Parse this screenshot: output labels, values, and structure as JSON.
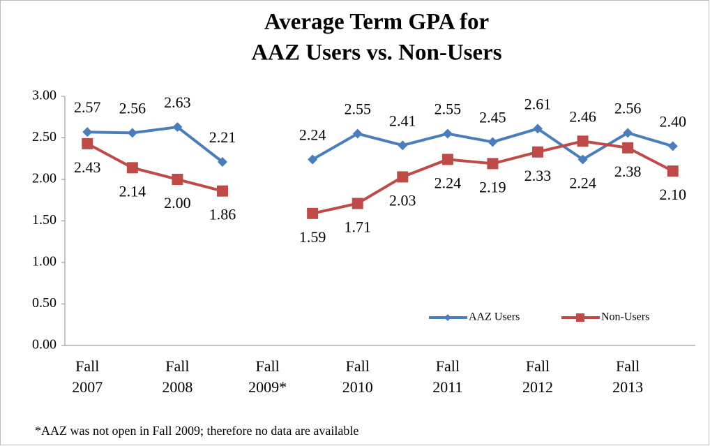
{
  "chart_data": {
    "type": "line",
    "title": [
      "Average Term GPA for",
      "AAZ Users vs. Non-Users"
    ],
    "categories": [
      "Fall 2007",
      null,
      "Fall 2008",
      null,
      "Fall 2009*",
      null,
      "Fall 2010",
      null,
      "Fall 2011",
      null,
      "Fall 2012",
      null,
      "Fall 2013",
      null
    ],
    "series": [
      {
        "name": "AAZ Users",
        "color": "#4a7ebb",
        "marker": "diamond",
        "values": [
          2.57,
          2.56,
          2.63,
          2.21,
          null,
          2.24,
          2.55,
          2.41,
          2.55,
          2.45,
          2.61,
          2.24,
          2.56,
          2.4
        ],
        "value_labels": [
          "2.57",
          "2.56",
          "2.63",
          "2.21",
          null,
          "2.24",
          "2.55",
          "2.41",
          "2.55",
          "2.45",
          "2.61",
          "2.24",
          "2.56",
          "2.40"
        ]
      },
      {
        "name": "Non-Users",
        "color": "#be4b48",
        "marker": "square",
        "values": [
          2.43,
          2.14,
          2.0,
          1.86,
          null,
          1.59,
          1.71,
          2.03,
          2.24,
          2.19,
          2.33,
          2.46,
          2.38,
          2.1
        ],
        "value_labels": [
          "2.43",
          "2.14",
          "2.00",
          "1.86",
          null,
          "1.59",
          "1.71",
          "2.03",
          "2.24",
          "2.19",
          "2.33",
          "2.46",
          "2.38",
          "2.10"
        ]
      }
    ],
    "ylim": [
      0,
      3
    ],
    "yticks": [
      {
        "value": 0,
        "label": "0.00"
      },
      {
        "value": 0.5,
        "label": "0.50"
      },
      {
        "value": 1,
        "label": "1.00"
      },
      {
        "value": 1.5,
        "label": "1.50"
      },
      {
        "value": 2,
        "label": "2.00"
      },
      {
        "value": 2.5,
        "label": "2.50"
      },
      {
        "value": 3,
        "label": "3.00"
      }
    ],
    "grid": false,
    "legend": "lower right",
    "footnote": "*AAZ was not open in Fall 2009; therefore no data are available"
  }
}
